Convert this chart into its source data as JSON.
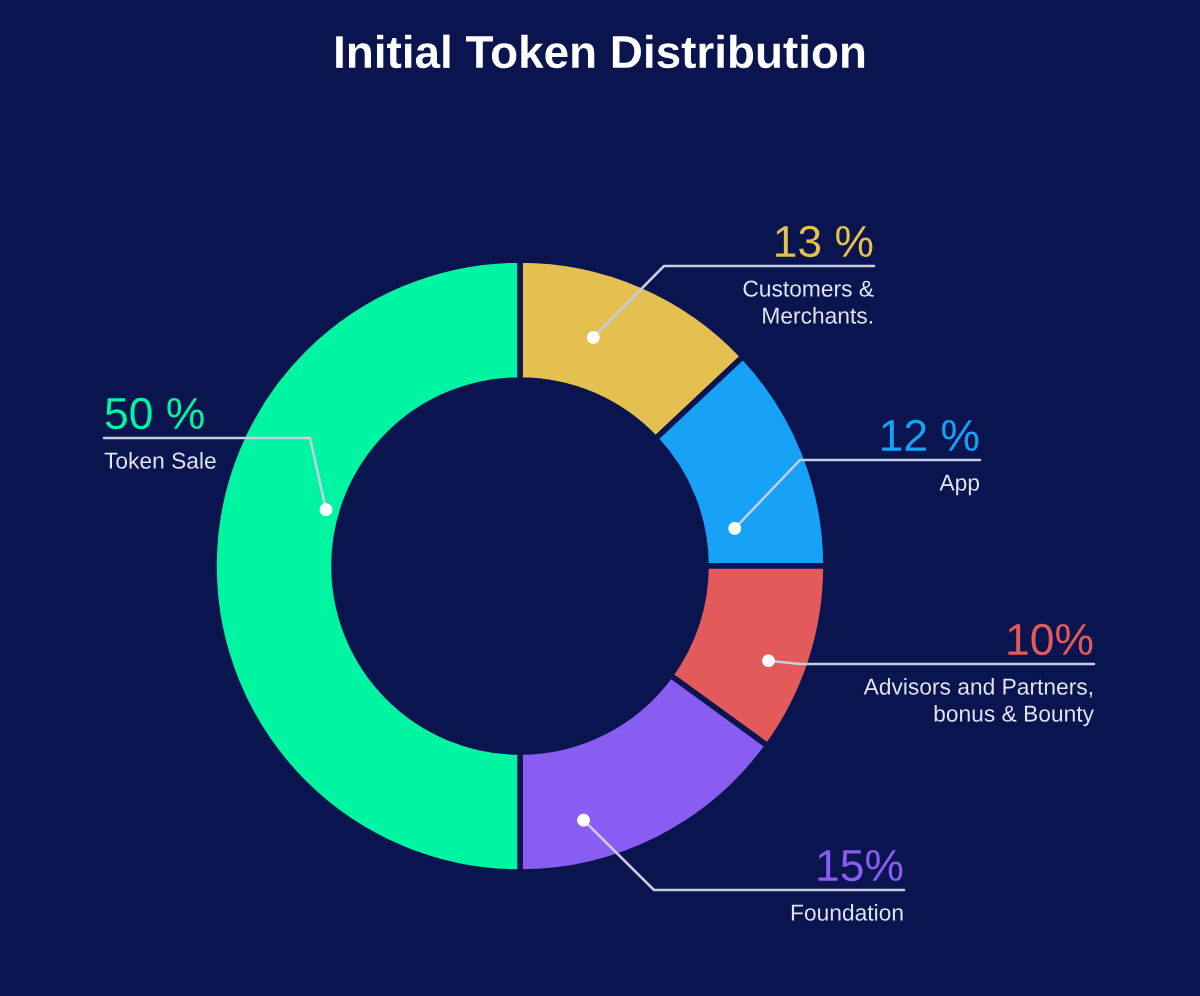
{
  "chart_data": {
    "type": "donut",
    "title": "Initial Token Distribution",
    "categories": [
      "Customers &\nMerchants.",
      "App",
      "Advisors and Partners,\nbonus & Bounty",
      "Foundation",
      "Token Sale"
    ],
    "values": [
      13,
      12,
      10,
      15,
      50
    ],
    "colors": [
      "#e3c050",
      "#17a2f7",
      "#e25a59",
      "#8a5df2",
      "#00f5a3"
    ],
    "value_labels": [
      "13 %",
      "12 %",
      "10%",
      "15%",
      "50 %"
    ]
  }
}
